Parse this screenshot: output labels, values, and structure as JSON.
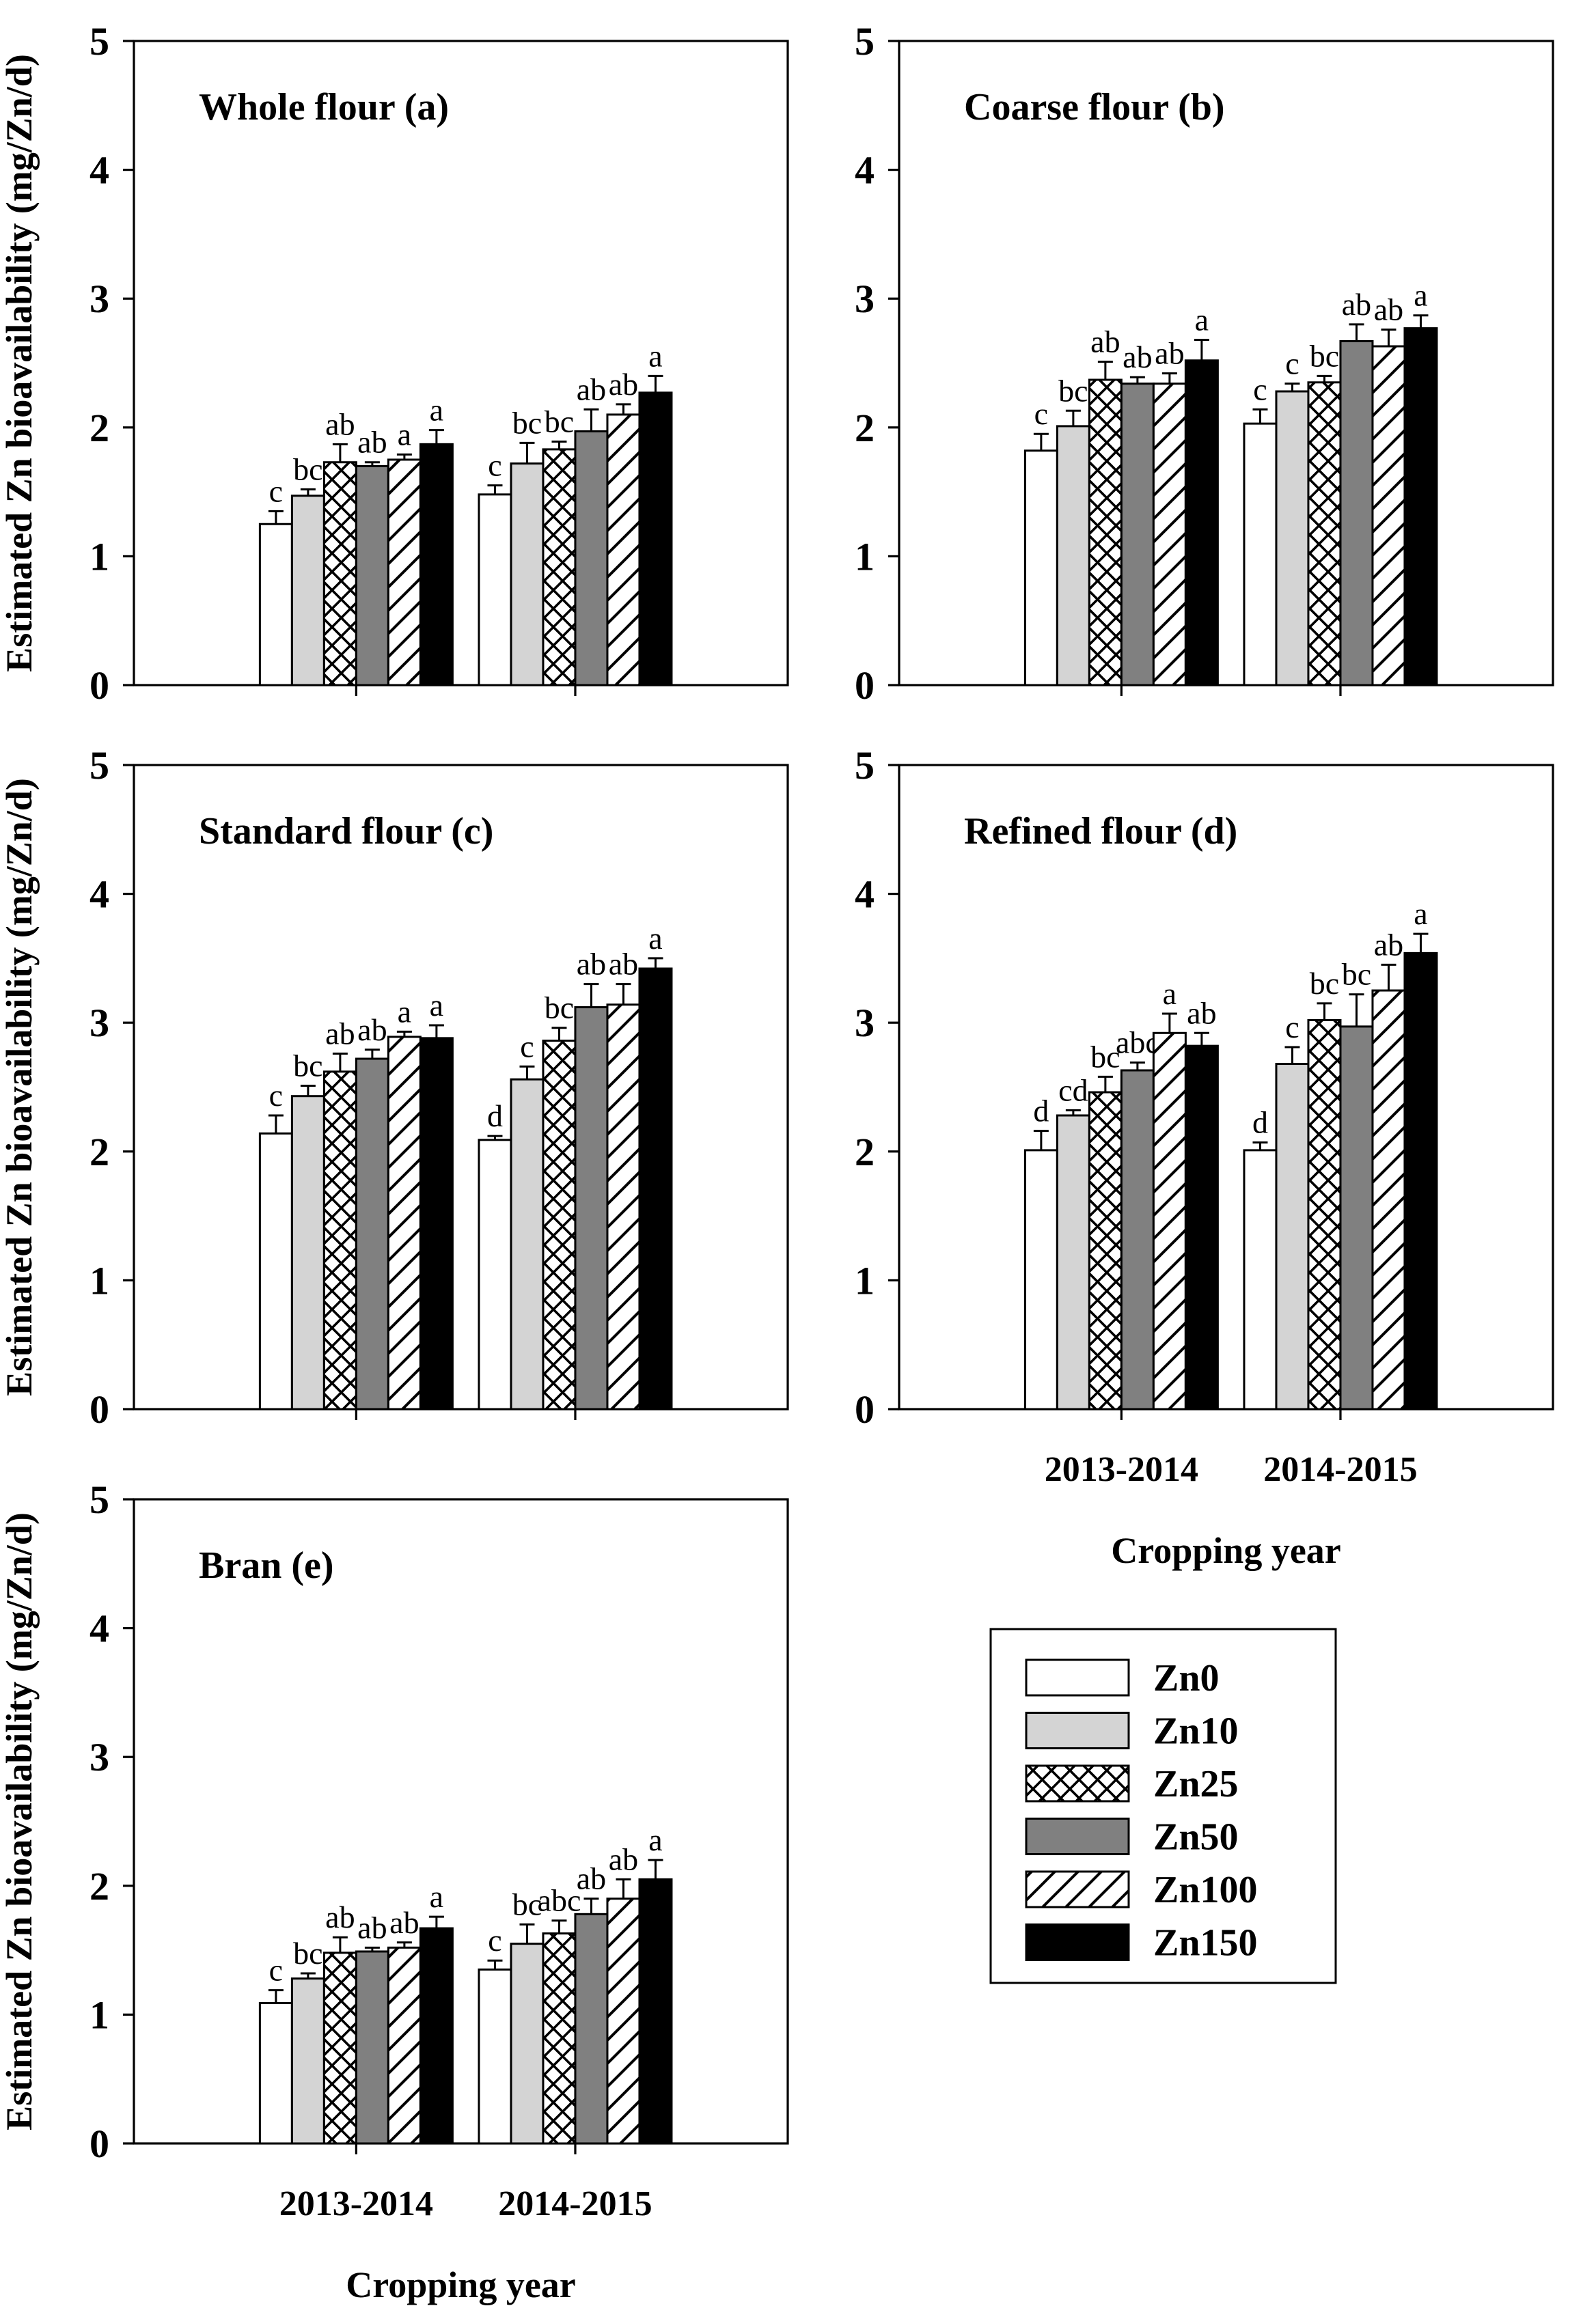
{
  "figure": {
    "y_axis_label": "Estimated Zn bioavailability (mg/Zn/d)",
    "x_axis_label": "Cropping year",
    "y_ticks": [
      "0",
      "1",
      "2",
      "3",
      "4",
      "5"
    ],
    "y_max": 5,
    "categories": [
      "2013-2014",
      "2014-2015"
    ],
    "colors": {
      "zn0_fill": "#ffffff",
      "zn10_fill": "#d4d4d4",
      "zn50_fill": "#808080",
      "zn150_fill": "#000000",
      "outline": "#000000"
    },
    "legend": {
      "items": [
        {
          "label": "Zn0",
          "swatch": "white"
        },
        {
          "label": "Zn10",
          "swatch": "lightgray"
        },
        {
          "label": "Zn25",
          "swatch": "crosshatch"
        },
        {
          "label": "Zn50",
          "swatch": "gray"
        },
        {
          "label": "Zn100",
          "swatch": "diagonal"
        },
        {
          "label": "Zn150",
          "swatch": "black"
        }
      ]
    }
  },
  "chart_data": [
    {
      "type": "bar",
      "id": "a",
      "title": "Whole flour (a)",
      "row": 0,
      "col": 0,
      "show_x_tick_labels": false,
      "show_x_axis_title": false,
      "categories": [
        "2013-2014",
        "2014-2015"
      ],
      "ylim": [
        0,
        5
      ],
      "series": [
        {
          "name": "Zn0",
          "swatch": "white",
          "values": [
            1.25,
            1.48
          ],
          "errors": [
            0.1,
            0.07
          ],
          "letters": [
            "c",
            "c"
          ]
        },
        {
          "name": "Zn10",
          "swatch": "lightgray",
          "values": [
            1.47,
            1.72
          ],
          "errors": [
            0.05,
            0.16
          ],
          "letters": [
            "bc",
            "bc"
          ]
        },
        {
          "name": "Zn25",
          "swatch": "crosshatch",
          "values": [
            1.73,
            1.83
          ],
          "errors": [
            0.14,
            0.06
          ],
          "letters": [
            "ab",
            "bc"
          ]
        },
        {
          "name": "Zn50",
          "swatch": "gray",
          "values": [
            1.7,
            1.97
          ],
          "errors": [
            0.03,
            0.17
          ],
          "letters": [
            "ab",
            "ab"
          ]
        },
        {
          "name": "Zn100",
          "swatch": "diagonal",
          "values": [
            1.75,
            2.1
          ],
          "errors": [
            0.04,
            0.08
          ],
          "letters": [
            "a",
            "ab"
          ]
        },
        {
          "name": "Zn150",
          "swatch": "black",
          "values": [
            1.87,
            2.27
          ],
          "errors": [
            0.11,
            0.13
          ],
          "letters": [
            "a",
            "a"
          ]
        }
      ]
    },
    {
      "type": "bar",
      "id": "b",
      "title": "Coarse flour (b)",
      "row": 0,
      "col": 1,
      "show_x_tick_labels": false,
      "show_x_axis_title": false,
      "categories": [
        "2013-2014",
        "2014-2015"
      ],
      "ylim": [
        0,
        5
      ],
      "series": [
        {
          "name": "Zn0",
          "swatch": "white",
          "values": [
            1.82,
            2.03
          ],
          "errors": [
            0.13,
            0.11
          ],
          "letters": [
            "c",
            "c"
          ]
        },
        {
          "name": "Zn10",
          "swatch": "lightgray",
          "values": [
            2.01,
            2.28
          ],
          "errors": [
            0.12,
            0.06
          ],
          "letters": [
            "bc",
            "c"
          ]
        },
        {
          "name": "Zn25",
          "swatch": "crosshatch",
          "values": [
            2.37,
            2.35
          ],
          "errors": [
            0.14,
            0.05
          ],
          "letters": [
            "ab",
            "bc"
          ]
        },
        {
          "name": "Zn50",
          "swatch": "gray",
          "values": [
            2.34,
            2.67
          ],
          "errors": [
            0.05,
            0.13
          ],
          "letters": [
            "ab",
            "ab"
          ]
        },
        {
          "name": "Zn100",
          "swatch": "diagonal",
          "values": [
            2.34,
            2.63
          ],
          "errors": [
            0.08,
            0.13
          ],
          "letters": [
            "ab",
            "ab"
          ]
        },
        {
          "name": "Zn150",
          "swatch": "black",
          "values": [
            2.52,
            2.77
          ],
          "errors": [
            0.16,
            0.1
          ],
          "letters": [
            "a",
            "a"
          ]
        }
      ]
    },
    {
      "type": "bar",
      "id": "c",
      "title": "Standard flour (c)",
      "row": 1,
      "col": 0,
      "show_x_tick_labels": false,
      "show_x_axis_title": false,
      "categories": [
        "2013-2014",
        "2014-2015"
      ],
      "ylim": [
        0,
        5
      ],
      "series": [
        {
          "name": "Zn0",
          "swatch": "white",
          "values": [
            2.14,
            2.09
          ],
          "errors": [
            0.14,
            0.03
          ],
          "letters": [
            "c",
            "d"
          ]
        },
        {
          "name": "Zn10",
          "swatch": "lightgray",
          "values": [
            2.43,
            2.56
          ],
          "errors": [
            0.08,
            0.1
          ],
          "letters": [
            "bc",
            "c"
          ]
        },
        {
          "name": "Zn25",
          "swatch": "crosshatch",
          "values": [
            2.62,
            2.86
          ],
          "errors": [
            0.14,
            0.1
          ],
          "letters": [
            "ab",
            "bc"
          ]
        },
        {
          "name": "Zn50",
          "swatch": "gray",
          "values": [
            2.72,
            3.12
          ],
          "errors": [
            0.07,
            0.18
          ],
          "letters": [
            "ab",
            "ab"
          ]
        },
        {
          "name": "Zn100",
          "swatch": "diagonal",
          "values": [
            2.89,
            3.14
          ],
          "errors": [
            0.04,
            0.16
          ],
          "letters": [
            "a",
            "ab"
          ]
        },
        {
          "name": "Zn150",
          "swatch": "black",
          "values": [
            2.88,
            3.42
          ],
          "errors": [
            0.1,
            0.08
          ],
          "letters": [
            "a",
            "a"
          ]
        }
      ]
    },
    {
      "type": "bar",
      "id": "d",
      "title": "Refined flour (d)",
      "row": 1,
      "col": 1,
      "show_x_tick_labels": true,
      "show_x_axis_title": true,
      "categories": [
        "2013-2014",
        "2014-2015"
      ],
      "ylim": [
        0,
        5
      ],
      "series": [
        {
          "name": "Zn0",
          "swatch": "white",
          "values": [
            2.01,
            2.01
          ],
          "errors": [
            0.15,
            0.06
          ],
          "letters": [
            "d",
            "d"
          ]
        },
        {
          "name": "Zn10",
          "swatch": "lightgray",
          "values": [
            2.28,
            2.68
          ],
          "errors": [
            0.04,
            0.13
          ],
          "letters": [
            "cd",
            "c"
          ]
        },
        {
          "name": "Zn25",
          "swatch": "crosshatch",
          "values": [
            2.46,
            3.02
          ],
          "errors": [
            0.12,
            0.13
          ],
          "letters": [
            "bc",
            "bc"
          ]
        },
        {
          "name": "Zn50",
          "swatch": "gray",
          "values": [
            2.63,
            2.97
          ],
          "errors": [
            0.06,
            0.25
          ],
          "letters": [
            "abc",
            "bc"
          ]
        },
        {
          "name": "Zn100",
          "swatch": "diagonal",
          "values": [
            2.92,
            3.25
          ],
          "errors": [
            0.15,
            0.2
          ],
          "letters": [
            "a",
            "ab"
          ]
        },
        {
          "name": "Zn150",
          "swatch": "black",
          "values": [
            2.82,
            3.54
          ],
          "errors": [
            0.1,
            0.15
          ],
          "letters": [
            "ab",
            "a"
          ]
        }
      ]
    },
    {
      "type": "bar",
      "id": "e",
      "title": "Bran (e)",
      "row": 2,
      "col": 0,
      "show_x_tick_labels": true,
      "show_x_axis_title": true,
      "categories": [
        "2013-2014",
        "2014-2015"
      ],
      "ylim": [
        0,
        5
      ],
      "series": [
        {
          "name": "Zn0",
          "swatch": "white",
          "values": [
            1.09,
            1.35
          ],
          "errors": [
            0.1,
            0.07
          ],
          "letters": [
            "c",
            "c"
          ]
        },
        {
          "name": "Zn10",
          "swatch": "lightgray",
          "values": [
            1.28,
            1.55
          ],
          "errors": [
            0.04,
            0.15
          ],
          "letters": [
            "bc",
            "bc"
          ]
        },
        {
          "name": "Zn25",
          "swatch": "crosshatch",
          "values": [
            1.48,
            1.63
          ],
          "errors": [
            0.12,
            0.1
          ],
          "letters": [
            "ab",
            "abc"
          ]
        },
        {
          "name": "Zn50",
          "swatch": "gray",
          "values": [
            1.49,
            1.78
          ],
          "errors": [
            0.03,
            0.12
          ],
          "letters": [
            "ab",
            "ab"
          ]
        },
        {
          "name": "Zn100",
          "swatch": "diagonal",
          "values": [
            1.52,
            1.9
          ],
          "errors": [
            0.04,
            0.15
          ],
          "letters": [
            "ab",
            "ab"
          ]
        },
        {
          "name": "Zn150",
          "swatch": "black",
          "values": [
            1.67,
            2.05
          ],
          "errors": [
            0.09,
            0.15
          ],
          "letters": [
            "a",
            "a"
          ]
        }
      ]
    }
  ]
}
